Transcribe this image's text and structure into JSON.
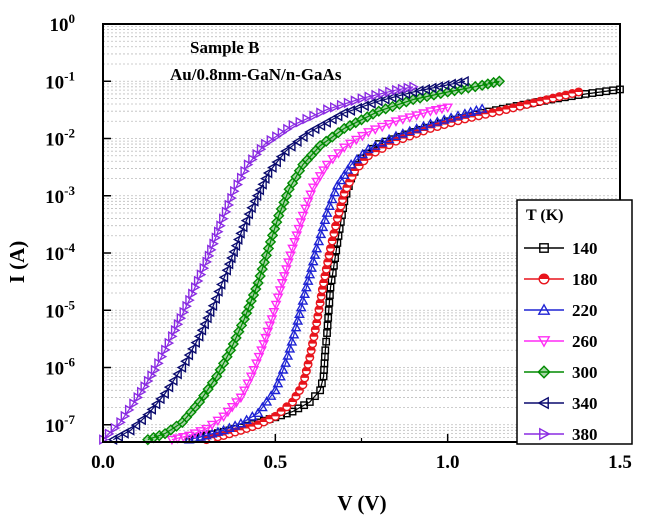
{
  "chart_data": {
    "type": "line",
    "title": "",
    "xlabel": "V (V)",
    "ylabel": "I (A)",
    "xlim": [
      0.0,
      1.5
    ],
    "ylim": [
      5e-08,
      1.0
    ],
    "yscale": "log",
    "grid": "horizontal minor dotted",
    "x_ticks": [
      {
        "value": 0.0,
        "label": "0.0"
      },
      {
        "value": 0.5,
        "label": "0.5"
      },
      {
        "value": 1.0,
        "label": "1.0"
      },
      {
        "value": 1.5,
        "label": "1.5"
      }
    ],
    "y_ticks": [
      {
        "value": 1e-07,
        "base": "10",
        "exp": "-7"
      },
      {
        "value": 1e-06,
        "base": "10",
        "exp": "-6"
      },
      {
        "value": 1e-05,
        "base": "10",
        "exp": "-5"
      },
      {
        "value": 0.0001,
        "base": "10",
        "exp": "-4"
      },
      {
        "value": 0.001,
        "base": "10",
        "exp": "-3"
      },
      {
        "value": 0.01,
        "base": "10",
        "exp": "-2"
      },
      {
        "value": 0.1,
        "base": "10",
        "exp": "-1"
      },
      {
        "value": 1,
        "base": "10",
        "exp": "0"
      }
    ],
    "annotations": [
      "Sample B",
      "Au/0.8nm-GaN/n-GaAs"
    ],
    "legend": {
      "title": "T  (K)",
      "position": "right"
    },
    "series": [
      {
        "name": "140",
        "color": "#000000",
        "marker": "square",
        "points": [
          [
            0.25,
            5.5e-08
          ],
          [
            0.3,
            6.5e-08
          ],
          [
            0.35,
            7.5e-08
          ],
          [
            0.4,
            9e-08
          ],
          [
            0.45,
            1.1e-07
          ],
          [
            0.5,
            1.35e-07
          ],
          [
            0.55,
            1.7e-07
          ],
          [
            0.6,
            2.5e-07
          ],
          [
            0.63,
            4e-07
          ],
          [
            0.64,
            7e-07
          ],
          [
            0.645,
            2e-06
          ],
          [
            0.65,
            4e-06
          ],
          [
            0.655,
            1e-05
          ],
          [
            0.66,
            2.5e-05
          ],
          [
            0.67,
            6e-05
          ],
          [
            0.68,
            0.00015
          ],
          [
            0.69,
            0.00035
          ],
          [
            0.7,
            0.0008
          ],
          [
            0.72,
            0.002
          ],
          [
            0.75,
            0.0045
          ],
          [
            0.8,
            0.008
          ],
          [
            0.9,
            0.013
          ],
          [
            1.0,
            0.02
          ],
          [
            1.1,
            0.028
          ],
          [
            1.2,
            0.037
          ],
          [
            1.3,
            0.048
          ],
          [
            1.4,
            0.06
          ],
          [
            1.5,
            0.072
          ]
        ]
      },
      {
        "name": "180",
        "color": "#e8141c",
        "marker": "circle",
        "points": [
          [
            0.3,
            5.5e-08
          ],
          [
            0.35,
            6.5e-08
          ],
          [
            0.4,
            8e-08
          ],
          [
            0.45,
            1e-07
          ],
          [
            0.5,
            1.4e-07
          ],
          [
            0.55,
            2.5e-07
          ],
          [
            0.58,
            5e-07
          ],
          [
            0.6,
            1.5e-06
          ],
          [
            0.62,
            6e-06
          ],
          [
            0.64,
            3e-05
          ],
          [
            0.66,
            0.00012
          ],
          [
            0.68,
            0.0004
          ],
          [
            0.7,
            0.0011
          ],
          [
            0.73,
            0.0027
          ],
          [
            0.77,
            0.005
          ],
          [
            0.85,
            0.009
          ],
          [
            0.95,
            0.015
          ],
          [
            1.05,
            0.022
          ],
          [
            1.15,
            0.03
          ],
          [
            1.25,
            0.042
          ],
          [
            1.38,
            0.065
          ]
        ]
      },
      {
        "name": "220",
        "color": "#1f23d4",
        "marker": "triangle-up",
        "points": [
          [
            0.25,
            5.5e-08
          ],
          [
            0.3,
            6.5e-08
          ],
          [
            0.35,
            8e-08
          ],
          [
            0.4,
            1.05e-07
          ],
          [
            0.45,
            1.6e-07
          ],
          [
            0.5,
            4e-07
          ],
          [
            0.53,
            1.2e-06
          ],
          [
            0.56,
            5e-06
          ],
          [
            0.59,
            2.5e-05
          ],
          [
            0.62,
            0.00012
          ],
          [
            0.65,
            0.0005
          ],
          [
            0.68,
            0.0015
          ],
          [
            0.72,
            0.0035
          ],
          [
            0.77,
            0.0065
          ],
          [
            0.85,
            0.011
          ],
          [
            0.95,
            0.018
          ],
          [
            1.05,
            0.027
          ],
          [
            1.1,
            0.033
          ]
        ]
      },
      {
        "name": "260",
        "color": "#ff2cf5",
        "marker": "triangle-down",
        "points": [
          [
            0.2,
            5.5e-08
          ],
          [
            0.25,
            6.5e-08
          ],
          [
            0.3,
            8.5e-08
          ],
          [
            0.35,
            1.4e-07
          ],
          [
            0.4,
            3e-07
          ],
          [
            0.43,
            7e-07
          ],
          [
            0.46,
            2e-06
          ],
          [
            0.49,
            7e-06
          ],
          [
            0.52,
            3e-05
          ],
          [
            0.55,
            0.00012
          ],
          [
            0.58,
            0.00045
          ],
          [
            0.61,
            0.0014
          ],
          [
            0.65,
            0.0035
          ],
          [
            0.7,
            0.007
          ],
          [
            0.77,
            0.013
          ],
          [
            0.85,
            0.02
          ],
          [
            0.95,
            0.03
          ],
          [
            1.0,
            0.035
          ]
        ]
      },
      {
        "name": "300",
        "color": "#008a00",
        "marker": "diamond",
        "points": [
          [
            0.13,
            5.5e-08
          ],
          [
            0.18,
            7e-08
          ],
          [
            0.23,
            1.1e-07
          ],
          [
            0.28,
            2.5e-07
          ],
          [
            0.33,
            7e-07
          ],
          [
            0.37,
            2e-06
          ],
          [
            0.41,
            7e-06
          ],
          [
            0.45,
            3e-05
          ],
          [
            0.48,
            0.00012
          ],
          [
            0.51,
            0.00045
          ],
          [
            0.54,
            0.0013
          ],
          [
            0.58,
            0.0035
          ],
          [
            0.63,
            0.0075
          ],
          [
            0.7,
            0.015
          ],
          [
            0.8,
            0.03
          ],
          [
            0.9,
            0.048
          ],
          [
            1.0,
            0.065
          ],
          [
            1.1,
            0.085
          ],
          [
            1.15,
            0.1
          ]
        ]
      },
      {
        "name": "340",
        "color": "#0a0a6e",
        "marker": "triangle-left",
        "points": [
          [
            0.03,
            5.5e-08
          ],
          [
            0.08,
            8e-08
          ],
          [
            0.13,
            1.5e-07
          ],
          [
            0.18,
            3.5e-07
          ],
          [
            0.23,
            1e-06
          ],
          [
            0.28,
            3.5e-06
          ],
          [
            0.32,
            1.2e-05
          ],
          [
            0.36,
            5e-05
          ],
          [
            0.4,
            0.00022
          ],
          [
            0.44,
            0.0008
          ],
          [
            0.48,
            0.0025
          ],
          [
            0.53,
            0.006
          ],
          [
            0.6,
            0.013
          ],
          [
            0.7,
            0.028
          ],
          [
            0.8,
            0.045
          ],
          [
            0.9,
            0.065
          ],
          [
            1.05,
            0.1
          ]
        ]
      },
      {
        "name": "380",
        "color": "#8a2be2",
        "marker": "triangle-right",
        "points": [
          [
            0.0,
            5.5e-08
          ],
          [
            0.05,
            1.1e-07
          ],
          [
            0.1,
            3e-07
          ],
          [
            0.15,
            9e-07
          ],
          [
            0.2,
            3.5e-06
          ],
          [
            0.25,
            1.5e-05
          ],
          [
            0.3,
            7e-05
          ],
          [
            0.34,
            0.0003
          ],
          [
            0.38,
            0.0012
          ],
          [
            0.42,
            0.0035
          ],
          [
            0.47,
            0.008
          ],
          [
            0.55,
            0.017
          ],
          [
            0.65,
            0.032
          ],
          [
            0.75,
            0.05
          ],
          [
            0.85,
            0.07
          ],
          [
            0.9,
            0.08
          ]
        ]
      }
    ]
  }
}
